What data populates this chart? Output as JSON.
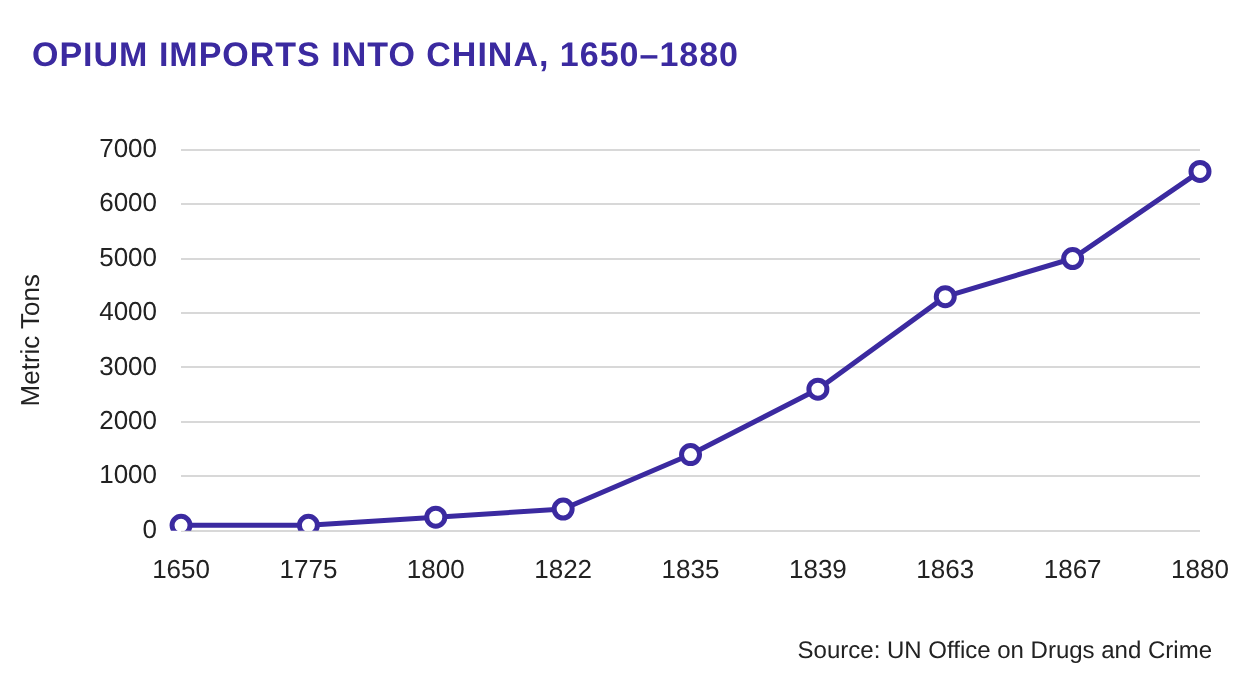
{
  "chart_data": {
    "type": "line",
    "title": "OPIUM IMPORTS INTO CHINA, 1650–1880",
    "ylabel": "Metric Tons",
    "categories": [
      "1650",
      "1775",
      "1800",
      "1822",
      "1835",
      "1839",
      "1863",
      "1867",
      "1880"
    ],
    "series": [
      {
        "color": "#3b2aa0",
        "values": [
          100,
          100,
          250,
          400,
          1400,
          2600,
          4300,
          5000,
          6600
        ]
      }
    ],
    "ylim": [
      0,
      7000
    ],
    "yticks": [
      0,
      1000,
      2000,
      3000,
      4000,
      5000,
      6000,
      7000
    ],
    "grid": "y",
    "legend": false,
    "marker": "circle",
    "line_style": "solid",
    "annotations": [
      "Source: UN Office on Drugs and Crime"
    ]
  }
}
